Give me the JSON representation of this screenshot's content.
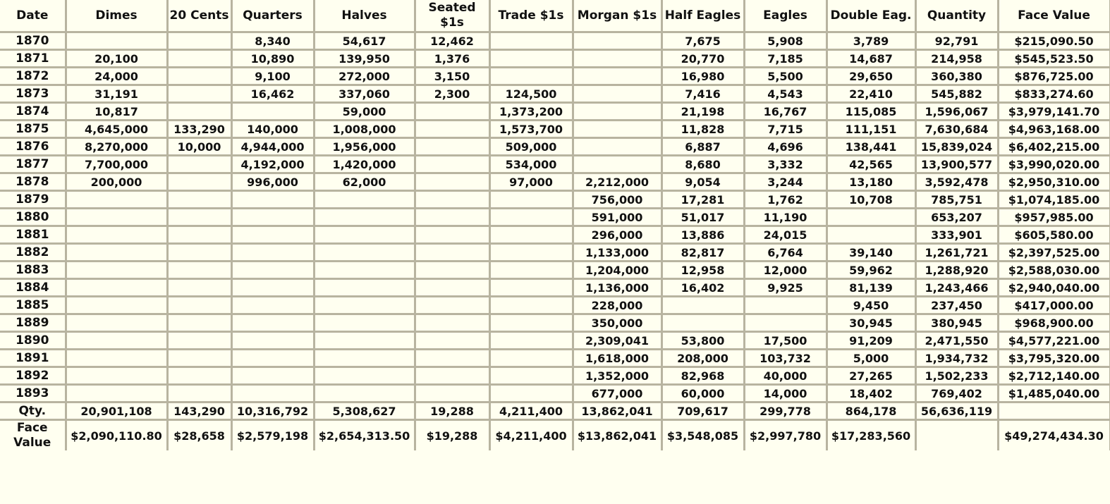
{
  "table": {
    "headers": [
      "Date",
      "Dimes",
      "20 Cents",
      "Quarters",
      "Halves",
      "Seated $1s",
      "Trade $1s",
      "Morgan $1s",
      "Half Eagles",
      "Eagles",
      "Double Eag.",
      "Quantity",
      "Face Value"
    ],
    "rows": [
      [
        "1870",
        "",
        "",
        "8,340",
        "54,617",
        "12,462",
        "",
        "",
        "7,675",
        "5,908",
        "3,789",
        "92,791",
        "$215,090.50"
      ],
      [
        "1871",
        "20,100",
        "",
        "10,890",
        "139,950",
        "1,376",
        "",
        "",
        "20,770",
        "7,185",
        "14,687",
        "214,958",
        "$545,523.50"
      ],
      [
        "1872",
        "24,000",
        "",
        "9,100",
        "272,000",
        "3,150",
        "",
        "",
        "16,980",
        "5,500",
        "29,650",
        "360,380",
        "$876,725.00"
      ],
      [
        "1873",
        "31,191",
        "",
        "16,462",
        "337,060",
        "2,300",
        "124,500",
        "",
        "7,416",
        "4,543",
        "22,410",
        "545,882",
        "$833,274.60"
      ],
      [
        "1874",
        "10,817",
        "",
        "",
        "59,000",
        "",
        "1,373,200",
        "",
        "21,198",
        "16,767",
        "115,085",
        "1,596,067",
        "$3,979,141.70"
      ],
      [
        "1875",
        "4,645,000",
        "133,290",
        "140,000",
        "1,008,000",
        "",
        "1,573,700",
        "",
        "11,828",
        "7,715",
        "111,151",
        "7,630,684",
        "$4,963,168.00"
      ],
      [
        "1876",
        "8,270,000",
        "10,000",
        "4,944,000",
        "1,956,000",
        "",
        "509,000",
        "",
        "6,887",
        "4,696",
        "138,441",
        "15,839,024",
        "$6,402,215.00"
      ],
      [
        "1877",
        "7,700,000",
        "",
        "4,192,000",
        "1,420,000",
        "",
        "534,000",
        "",
        "8,680",
        "3,332",
        "42,565",
        "13,900,577",
        "$3,990,020.00"
      ],
      [
        "1878",
        "200,000",
        "",
        "996,000",
        "62,000",
        "",
        "97,000",
        "2,212,000",
        "9,054",
        "3,244",
        "13,180",
        "3,592,478",
        "$2,950,310.00"
      ],
      [
        "1879",
        "",
        "",
        "",
        "",
        "",
        "",
        "756,000",
        "17,281",
        "1,762",
        "10,708",
        "785,751",
        "$1,074,185.00"
      ],
      [
        "1880",
        "",
        "",
        "",
        "",
        "",
        "",
        "591,000",
        "51,017",
        "11,190",
        "",
        "653,207",
        "$957,985.00"
      ],
      [
        "1881",
        "",
        "",
        "",
        "",
        "",
        "",
        "296,000",
        "13,886",
        "24,015",
        "",
        "333,901",
        "$605,580.00"
      ],
      [
        "1882",
        "",
        "",
        "",
        "",
        "",
        "",
        "1,133,000",
        "82,817",
        "6,764",
        "39,140",
        "1,261,721",
        "$2,397,525.00"
      ],
      [
        "1883",
        "",
        "",
        "",
        "",
        "",
        "",
        "1,204,000",
        "12,958",
        "12,000",
        "59,962",
        "1,288,920",
        "$2,588,030.00"
      ],
      [
        "1884",
        "",
        "",
        "",
        "",
        "",
        "",
        "1,136,000",
        "16,402",
        "9,925",
        "81,139",
        "1,243,466",
        "$2,940,040.00"
      ],
      [
        "1885",
        "",
        "",
        "",
        "",
        "",
        "",
        "228,000",
        "",
        "",
        "9,450",
        "237,450",
        "$417,000.00"
      ],
      [
        "1889",
        "",
        "",
        "",
        "",
        "",
        "",
        "350,000",
        "",
        "",
        "30,945",
        "380,945",
        "$968,900.00"
      ],
      [
        "1890",
        "",
        "",
        "",
        "",
        "",
        "",
        "2,309,041",
        "53,800",
        "17,500",
        "91,209",
        "2,471,550",
        "$4,577,221.00"
      ],
      [
        "1891",
        "",
        "",
        "",
        "",
        "",
        "",
        "1,618,000",
        "208,000",
        "103,732",
        "5,000",
        "1,934,732",
        "$3,795,320.00"
      ],
      [
        "1892",
        "",
        "",
        "",
        "",
        "",
        "",
        "1,352,000",
        "82,968",
        "40,000",
        "27,265",
        "1,502,233",
        "$2,712,140.00"
      ],
      [
        "1893",
        "",
        "",
        "",
        "",
        "",
        "",
        "677,000",
        "60,000",
        "14,000",
        "18,402",
        "769,402",
        "$1,485,040.00"
      ]
    ],
    "totals_qty": [
      "Qty.",
      "20,901,108",
      "143,290",
      "10,316,792",
      "5,308,627",
      "19,288",
      "4,211,400",
      "13,862,041",
      "709,617",
      "299,778",
      "864,178",
      "56,636,119",
      ""
    ],
    "totals_face": [
      "Face Value",
      "$2,090,110.80",
      "$28,658",
      "$2,579,198",
      "$2,654,313.50",
      "$19,288",
      "$4,211,400",
      "$13,862,041",
      "$3,548,085",
      "$2,997,780",
      "$17,283,560",
      "",
      "$49,274,434.30"
    ]
  },
  "colors": {
    "background": "#fffff0",
    "border": "#b8b4a0",
    "text": "#111111"
  }
}
